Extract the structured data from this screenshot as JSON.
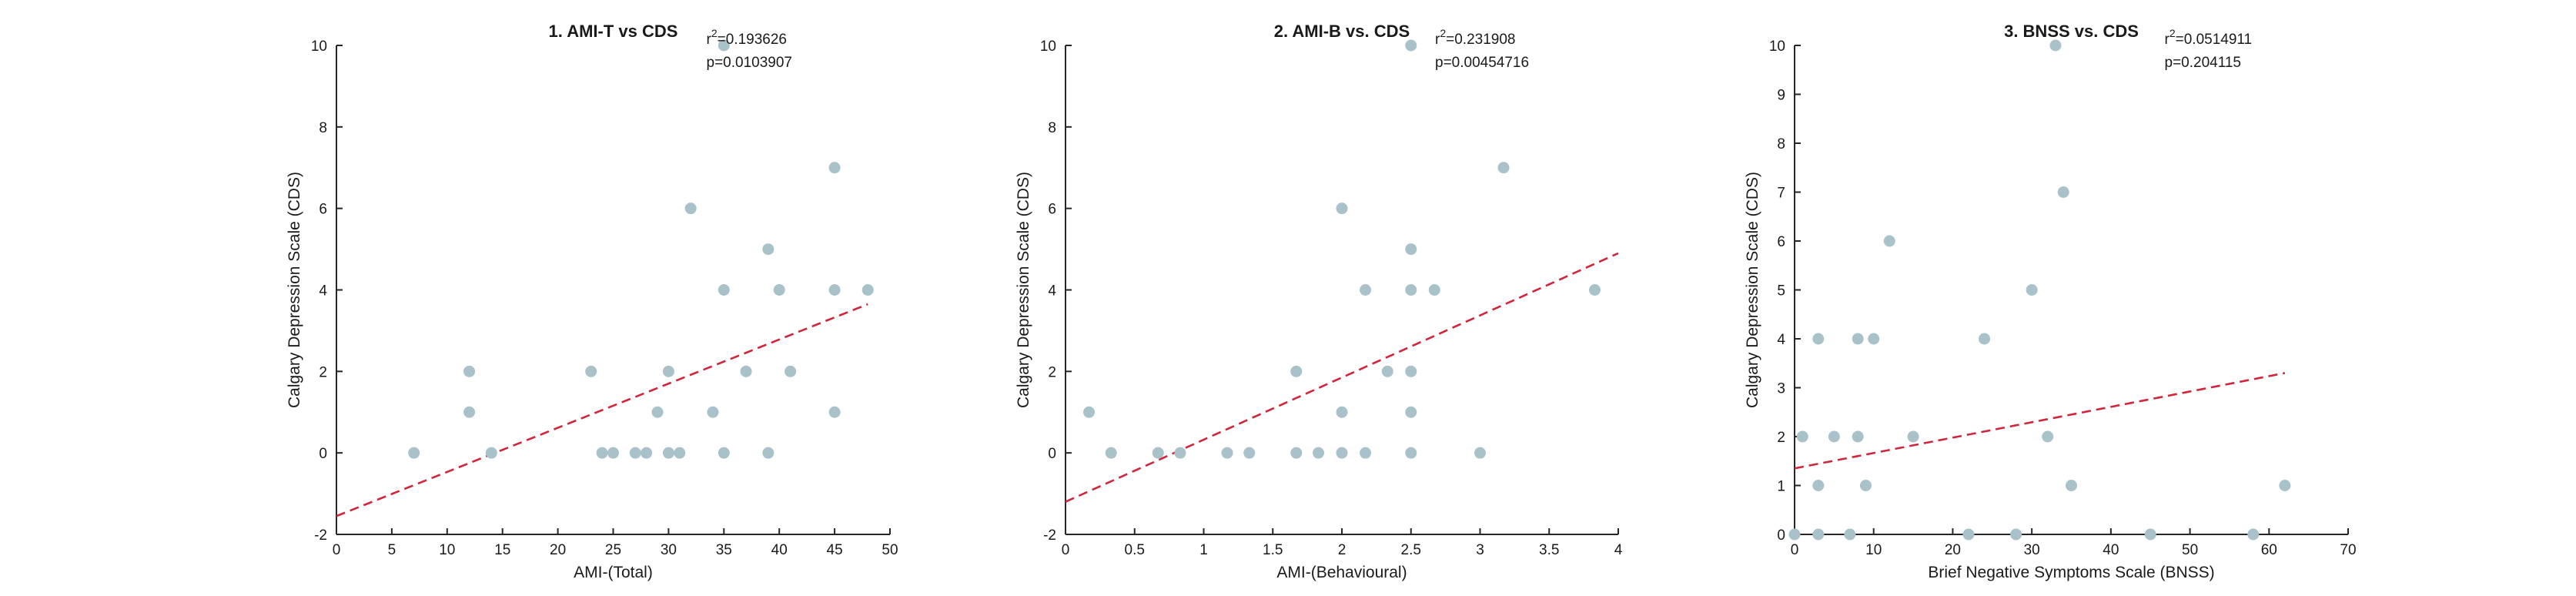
{
  "colors": {
    "points": "#a9c1c8",
    "fit_line": "#d0253a",
    "axes": "#262626"
  },
  "chart_data": [
    {
      "type": "scatter",
      "title": "1. AMI-T vs CDS",
      "stats": {
        "r2_label": "r",
        "r2_sup": "2",
        "r2_value": "=0.193626",
        "p_text": "p=0.0103907"
      },
      "xlabel": "AMI-(Total)",
      "ylabel": "Calgary Depression Scale (CDS)",
      "xlim": [
        0,
        50
      ],
      "ylim": [
        -2,
        10
      ],
      "xticks": [
        0,
        5,
        10,
        15,
        20,
        25,
        30,
        35,
        40,
        45,
        50
      ],
      "yticks": [
        -2,
        0,
        2,
        4,
        6,
        8,
        10
      ],
      "grid": false,
      "points": [
        [
          7,
          0
        ],
        [
          12,
          2
        ],
        [
          12,
          1
        ],
        [
          14,
          0
        ],
        [
          23,
          2
        ],
        [
          24,
          0
        ],
        [
          25,
          0
        ],
        [
          27,
          0
        ],
        [
          28,
          0
        ],
        [
          29,
          1
        ],
        [
          30,
          2
        ],
        [
          30,
          0
        ],
        [
          31,
          0
        ],
        [
          32,
          6
        ],
        [
          34,
          1
        ],
        [
          35,
          4
        ],
        [
          35,
          0
        ],
        [
          35,
          10
        ],
        [
          37,
          2
        ],
        [
          39,
          5
        ],
        [
          39,
          0
        ],
        [
          40,
          4
        ],
        [
          41,
          2
        ],
        [
          45,
          7
        ],
        [
          45,
          4
        ],
        [
          45,
          1
        ],
        [
          48,
          4
        ]
      ],
      "fit": [
        [
          0,
          -1.55
        ],
        [
          48,
          3.65
        ]
      ]
    },
    {
      "type": "scatter",
      "title": "2. AMI-B vs. CDS",
      "stats": {
        "r2_label": "r",
        "r2_sup": "2",
        "r2_value": "=0.231908",
        "p_text": "p=0.00454716"
      },
      "xlabel": "AMI-(Behavioural)",
      "ylabel": "Calgary Depression Scale (CDS)",
      "xlim": [
        0,
        4
      ],
      "ylim": [
        -2,
        10
      ],
      "xticks": [
        0,
        0.5,
        1,
        1.5,
        2,
        2.5,
        3,
        3.5,
        4
      ],
      "yticks": [
        -2,
        0,
        2,
        4,
        6,
        8,
        10
      ],
      "grid": false,
      "points": [
        [
          0.17,
          1
        ],
        [
          0.33,
          0
        ],
        [
          0.67,
          0
        ],
        [
          0.83,
          0
        ],
        [
          1.17,
          0
        ],
        [
          1.33,
          0
        ],
        [
          1.67,
          2
        ],
        [
          1.67,
          0
        ],
        [
          1.83,
          0
        ],
        [
          2.0,
          6
        ],
        [
          2.0,
          1
        ],
        [
          2.0,
          0
        ],
        [
          2.17,
          4
        ],
        [
          2.17,
          0
        ],
        [
          2.33,
          2
        ],
        [
          2.5,
          5
        ],
        [
          2.5,
          4
        ],
        [
          2.5,
          2
        ],
        [
          2.5,
          1
        ],
        [
          2.5,
          0
        ],
        [
          2.5,
          10
        ],
        [
          2.67,
          4
        ],
        [
          3.0,
          0
        ],
        [
          3.17,
          7
        ],
        [
          3.83,
          4
        ]
      ],
      "fit": [
        [
          0,
          -1.2
        ],
        [
          4,
          4.9
        ]
      ]
    },
    {
      "type": "scatter",
      "title": "3. BNSS vs. CDS",
      "stats": {
        "r2_label": "r",
        "r2_sup": "2",
        "r2_value": "=0.0514911",
        "p_text": "p=0.204115"
      },
      "xlabel": "Brief Negative Symptoms Scale (BNSS)",
      "ylabel": "Calgary Depression Scale (CDS)",
      "xlim": [
        0,
        70
      ],
      "ylim": [
        0,
        10
      ],
      "xticks": [
        0,
        10,
        20,
        30,
        40,
        50,
        60,
        70
      ],
      "yticks": [
        0,
        1,
        2,
        3,
        4,
        5,
        6,
        7,
        8,
        9,
        10
      ],
      "grid": false,
      "points": [
        [
          0,
          0
        ],
        [
          1,
          2
        ],
        [
          3,
          4
        ],
        [
          3,
          1
        ],
        [
          3,
          0
        ],
        [
          5,
          2
        ],
        [
          7,
          0
        ],
        [
          8,
          4
        ],
        [
          8,
          2
        ],
        [
          9,
          1
        ],
        [
          10,
          4
        ],
        [
          12,
          6
        ],
        [
          15,
          2
        ],
        [
          22,
          0
        ],
        [
          24,
          4
        ],
        [
          28,
          0
        ],
        [
          30,
          5
        ],
        [
          32,
          2
        ],
        [
          33,
          10
        ],
        [
          34,
          7
        ],
        [
          35,
          1
        ],
        [
          45,
          0
        ],
        [
          58,
          0
        ],
        [
          62,
          1
        ]
      ],
      "fit": [
        [
          0,
          1.35
        ],
        [
          62,
          3.3
        ]
      ]
    }
  ]
}
